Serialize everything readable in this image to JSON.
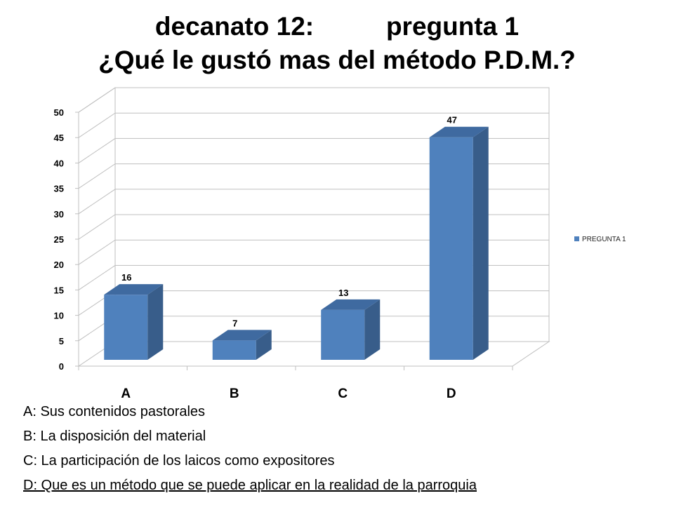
{
  "title": {
    "line1_left": "decanato 12:",
    "line1_right": "pregunta 1",
    "line2": "¿Qué le gustó mas del método P.D.M.?"
  },
  "chart_data": {
    "type": "bar",
    "categories": [
      "A",
      "B",
      "C",
      "D"
    ],
    "series": [
      {
        "name": "PREGUNTA 1",
        "values": [
          16,
          7,
          13,
          47
        ]
      }
    ],
    "ylim": [
      0,
      50
    ],
    "yticks": [
      0,
      5,
      10,
      15,
      20,
      25,
      30,
      35,
      40,
      45,
      50
    ],
    "legend_position": "right",
    "grid": true,
    "three_d": true,
    "colors": {
      "bar_front": "#4f81bd",
      "bar_side": "#385d8a",
      "bar_top": "#3f6aa0"
    }
  },
  "notes": [
    "A: Sus contenidos pastorales",
    "B: La disposición del material",
    "C: La participación de los laicos como expositores",
    "D: Que es un método que se puede aplicar en la realidad de la parroquia"
  ]
}
